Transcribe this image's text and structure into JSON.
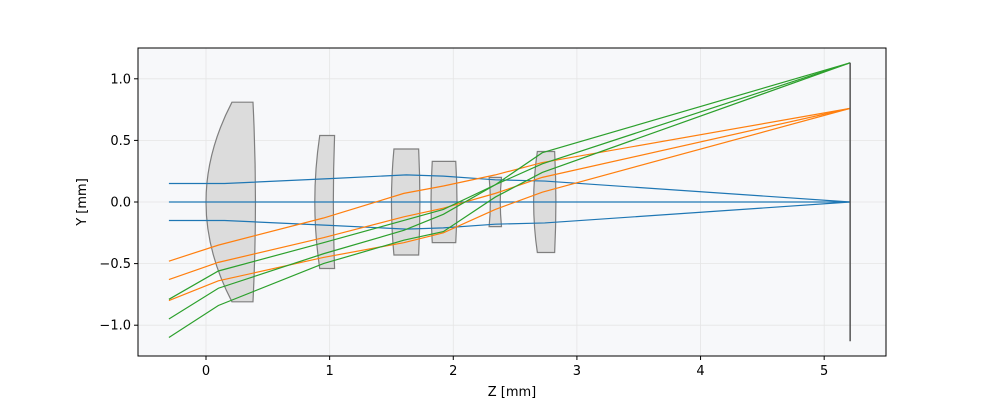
{
  "chart_data": {
    "type": "line",
    "title": "",
    "xlabel": "Z [mm]",
    "ylabel": "Y [mm]",
    "xlim": [
      -0.55,
      5.5
    ],
    "ylim": [
      -1.25,
      1.25
    ],
    "grid": true,
    "legend": "none",
    "xticks": [
      0,
      1,
      2,
      3,
      4,
      5
    ],
    "xtick_labels": [
      "0",
      "1",
      "2",
      "3",
      "4",
      "5"
    ],
    "yticks": [
      -1.0,
      -0.5,
      0.0,
      0.5,
      1.0
    ],
    "ytick_labels": [
      "−1.0",
      "−0.5",
      "0.0",
      "0.5",
      "1.0"
    ],
    "colors": {
      "axial": "#1f77b4",
      "mid_field": "#ff7f0e",
      "full_field": "#2ca02c",
      "lens_fill": "#dcdcdc",
      "lens_edge": "#7f7f7f",
      "plot_bg": "#f7f8fa",
      "grid": "#e5e5e5"
    },
    "lenses": [
      {
        "name": "lens-1",
        "front": {
          "z": 0.0,
          "sag": 0.21
        },
        "back": {
          "z": 0.4,
          "sag": -0.02
        },
        "semi_diameter": 0.81
      },
      {
        "name": "lens-2",
        "front": {
          "z": 0.88,
          "sag": 0.04
        },
        "back": {
          "z": 1.03,
          "sag": 0.01
        },
        "semi_diameter": 0.54
      },
      {
        "name": "lens-3",
        "front": {
          "z": 1.5,
          "sag": 0.02
        },
        "back": {
          "z": 1.73,
          "sag": -0.01
        },
        "semi_diameter": 0.43
      },
      {
        "name": "lens-4",
        "front": {
          "z": 1.82,
          "sag": 0.01
        },
        "back": {
          "z": 2.03,
          "sag": -0.01
        },
        "semi_diameter": 0.33
      },
      {
        "name": "lens-5",
        "front": {
          "z": 2.3,
          "sag": -0.01
        },
        "back": {
          "z": 2.38,
          "sag": 0.01
        },
        "semi_diameter": 0.2
      },
      {
        "name": "lens-6",
        "front": {
          "z": 2.65,
          "sag": 0.03
        },
        "back": {
          "z": 2.83,
          "sag": -0.01
        },
        "semi_diameter": 0.41
      }
    ],
    "image_plane": {
      "z": 5.21,
      "y_min": -1.13,
      "y_max": 1.13
    },
    "series": [
      {
        "name": "field-0-top",
        "field": "axial",
        "z": [
          -0.3,
          0.15,
          1.0,
          1.62,
          1.92,
          2.34,
          2.74,
          5.21
        ],
        "y": [
          0.15,
          0.15,
          0.19,
          0.22,
          0.21,
          0.18,
          0.17,
          0.0
        ]
      },
      {
        "name": "field-0-chief",
        "field": "axial",
        "z": [
          -0.3,
          5.21
        ],
        "y": [
          0.0,
          0.0
        ]
      },
      {
        "name": "field-0-bottom",
        "field": "axial",
        "z": [
          -0.3,
          0.15,
          1.0,
          1.62,
          1.92,
          2.34,
          2.74,
          5.21
        ],
        "y": [
          -0.15,
          -0.15,
          -0.19,
          -0.22,
          -0.21,
          -0.18,
          -0.17,
          0.0
        ]
      },
      {
        "name": "field-1-top",
        "field": "mid_field",
        "z": [
          -0.3,
          0.1,
          0.95,
          1.6,
          1.92,
          2.34,
          2.72,
          5.21
        ],
        "y": [
          -0.48,
          -0.35,
          -0.13,
          0.07,
          0.13,
          0.22,
          0.32,
          0.76
        ]
      },
      {
        "name": "field-1-chief",
        "field": "mid_field",
        "z": [
          -0.3,
          0.1,
          0.95,
          1.6,
          1.92,
          2.34,
          2.72,
          5.21
        ],
        "y": [
          -0.63,
          -0.49,
          -0.29,
          -0.12,
          -0.05,
          0.07,
          0.2,
          0.76
        ]
      },
      {
        "name": "field-1-bottom",
        "field": "mid_field",
        "z": [
          -0.3,
          0.1,
          0.95,
          1.6,
          1.92,
          2.34,
          2.72,
          5.21
        ],
        "y": [
          -0.8,
          -0.64,
          -0.45,
          -0.33,
          -0.25,
          -0.06,
          0.08,
          0.76
        ]
      },
      {
        "name": "field-2-top",
        "field": "full_field",
        "z": [
          -0.3,
          0.1,
          0.95,
          1.6,
          1.92,
          2.34,
          2.72,
          5.21
        ],
        "y": [
          -0.79,
          -0.56,
          -0.33,
          -0.15,
          -0.06,
          0.14,
          0.31,
          1.13
        ]
      },
      {
        "name": "field-2-chief",
        "field": "full_field",
        "z": [
          -0.3,
          0.1,
          0.95,
          1.6,
          1.92,
          2.34,
          2.72,
          5.21
        ],
        "y": [
          -0.95,
          -0.7,
          -0.42,
          -0.23,
          -0.1,
          0.14,
          0.4,
          1.13
        ]
      },
      {
        "name": "field-2-bottom",
        "field": "full_field",
        "z": [
          -0.3,
          0.1,
          0.95,
          1.6,
          1.92,
          2.34,
          2.72,
          5.21
        ],
        "y": [
          -1.1,
          -0.84,
          -0.5,
          -0.31,
          -0.24,
          0.04,
          0.24,
          1.13
        ]
      }
    ]
  }
}
